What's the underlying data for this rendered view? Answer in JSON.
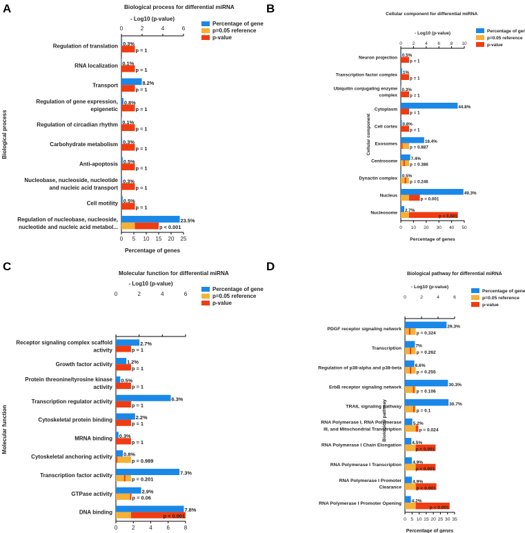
{
  "colors": {
    "gene": "#1a88e8",
    "reference": "#f5b035",
    "pvalue": "#f03c12"
  },
  "chart_data": [
    {
      "panel": "A",
      "type": "bar",
      "orientation": "horizontal",
      "title": "Biological process for differential miRNA",
      "ylabel": "Biological process",
      "xlabel": "Percentage of genes",
      "top_axis_label": "- Log10 (p-value)",
      "xlim_bottom": [
        0,
        25
      ],
      "xticks_bottom": [
        "0",
        "5",
        "10",
        "15",
        "20",
        "25"
      ],
      "xlim_top": [
        0,
        6
      ],
      "xticks_top": [
        "0",
        "2",
        "4",
        "6"
      ],
      "legend": [
        "Percentage of gene",
        "p=0.05 reference",
        "p-value"
      ],
      "categories": [
        [
          "Regulation of translation"
        ],
        [
          "RNA localization"
        ],
        [
          "Transport"
        ],
        [
          "Regulation of gene expression,",
          "epigenetic"
        ],
        [
          "Regulation of circadian rhythm"
        ],
        [
          "Carbohydrate metabolism"
        ],
        [
          "Anti-apoptosis"
        ],
        [
          "Nucleobase, nucleoside, nucleotide",
          "and nucleic acid transport"
        ],
        [
          "Cell motility"
        ],
        [
          "Regulation of nucleobase, nucleoside,",
          "nucleotide and nucleic acid metabol..."
        ]
      ],
      "percent_values": [
        0.3,
        0.1,
        8.2,
        0.8,
        0.1,
        0.3,
        0.5,
        0.3,
        0.5,
        23.5
      ],
      "percent_labels": [
        "0.3%",
        "0.1%",
        "8.2%",
        "0.8%",
        "0.1%",
        "0.3%",
        "0.5%",
        "0.3%",
        "0.5%",
        "23.5%"
      ],
      "neglog10_p": [
        0,
        0,
        0,
        0,
        0,
        0,
        0,
        0,
        0,
        3.6
      ],
      "p_labels": [
        "p = 1",
        "p = 1",
        "p = 1",
        "p = 1",
        "p = 1",
        "p = 1",
        "p = 1",
        "p = 1",
        "p = 1",
        "p < 0.001"
      ]
    },
    {
      "panel": "B",
      "type": "bar",
      "orientation": "horizontal",
      "title": "Cellular component for differential miRNA",
      "ylabel": "Cellular component",
      "xlabel": "Percentage of genes",
      "top_axis_label": "- Log10 (p-value)",
      "xlim_bottom": [
        0,
        50
      ],
      "xticks_bottom": [
        "0",
        "10",
        "20",
        "30",
        "40",
        "50"
      ],
      "xlim_top": [
        0,
        10
      ],
      "xticks_top": [
        "0",
        "2",
        "4",
        "6",
        "8",
        "10"
      ],
      "legend": [
        "Percentage of gene",
        "p=0.05 reference",
        "p-value"
      ],
      "categories": [
        [
          "Neuron projection"
        ],
        [
          "Transcription factor complex"
        ],
        [
          "Ubiquitin conjugating enzyme",
          "complex"
        ],
        [
          "Cytoplasm"
        ],
        [
          "Cell cortex"
        ],
        [
          "Exosomes"
        ],
        [
          "Centrosome"
        ],
        [
          "Dynactin complex"
        ],
        [
          "Nucleus"
        ],
        [
          "Nucleosome"
        ]
      ],
      "percent_values": [
        0.5,
        1,
        0.3,
        44.8,
        0.8,
        18.4,
        7.4,
        0.5,
        49.3,
        2.7
      ],
      "percent_labels": [
        "0.5%",
        "1%",
        "0.3%",
        "44.8%",
        "0.8%",
        "18.4%",
        "7.4%",
        "0.5%",
        "49.3%",
        "2.7%"
      ],
      "neglog10_p": [
        0,
        0,
        0,
        0,
        0,
        0.05,
        0.41,
        0.61,
        3.0,
        9.0
      ],
      "p_labels": [
        "p = 1",
        "p = 1",
        "p = 1",
        "p = 1",
        "p = 1",
        "p = 0.887",
        "p = 0.386",
        "p = 0.246",
        "p = 0.001",
        "p < 0.001"
      ]
    },
    {
      "panel": "C",
      "type": "bar",
      "orientation": "horizontal",
      "title": "Molecular function for differential miRNA",
      "ylabel": "Molecular function",
      "xlabel": "Percentage of genes",
      "top_axis_label": "- Log10 (p-value)",
      "xlim_bottom": [
        0,
        8
      ],
      "xticks_bottom": [
        "0",
        "2",
        "4",
        "6",
        "8"
      ],
      "xlim_top": [
        0,
        6
      ],
      "xticks_top": [
        "0",
        "2",
        "4",
        "6"
      ],
      "legend": [
        "Percentage of gene",
        "p=0.05 reference",
        "p-value"
      ],
      "categories": [
        [
          "Receptor signaling complex scaffold",
          "activity"
        ],
        [
          "Growth factor activity"
        ],
        [
          "Protein threonine/tyrosine kinase",
          "activity"
        ],
        [
          "Transcription regulator activity"
        ],
        [
          "Cytoskeletal protein binding"
        ],
        [
          "MRNA binding"
        ],
        [
          "Cytoskeletal anchoring activity"
        ],
        [
          "Transcription factor activity"
        ],
        [
          "GTPase activity"
        ],
        [
          "DNA binding"
        ]
      ],
      "percent_values": [
        2.7,
        1.2,
        0.5,
        6.3,
        2.2,
        0.3,
        0.8,
        7.3,
        2.9,
        7.8
      ],
      "percent_labels": [
        "2.7%",
        "1.2%",
        "0.5%",
        "6.3%",
        "2.2%",
        "0.3%",
        "0.8%",
        "7.3%",
        "2.9%",
        "7.8%"
      ],
      "neglog10_p": [
        0,
        0,
        0,
        0,
        0,
        0,
        0.005,
        0.7,
        1.22,
        6.0
      ],
      "p_labels": [
        "p = 1",
        "p = 1",
        "p = 1",
        "p = 1",
        "p = 1",
        "p = 1",
        "p = 0.989",
        "p = 0.201",
        "p = 0.06",
        "p < 0.001"
      ]
    },
    {
      "panel": "D",
      "type": "bar",
      "orientation": "horizontal",
      "title": "Biological pathway for differential miRNA",
      "ylabel": "Biological pathway",
      "xlabel": "Percentage of genes",
      "top_axis_label": "- Log10 (p-value)",
      "xlim_bottom": [
        0,
        35
      ],
      "xticks_bottom": [
        "0",
        "5",
        "10",
        "15",
        "20",
        "25",
        "30",
        "35"
      ],
      "xlim_top": [
        0,
        6
      ],
      "xticks_top": [
        "0",
        "2",
        "4",
        "6"
      ],
      "legend": [
        "Percentage of gene",
        "p=0.05 reference",
        "p-value"
      ],
      "categories": [
        [
          "PDGF receptor signaling network"
        ],
        [
          "Transcription"
        ],
        [
          "Regulation of p38-alpha and p38-beta"
        ],
        [
          "ErbB receptor signaling network"
        ],
        [
          "TRAIL signaling pathway"
        ],
        [
          "RNA Polymerase I, RNA Polymerase",
          "III, and Mitochondrial Transcription"
        ],
        [
          "RNA Polymerase I Chain Elongation"
        ],
        [
          "RNA Polymerase I Transcription"
        ],
        [
          "RNA Polymerase I Promoter",
          "Clearance"
        ],
        [
          "RNA Polymerase I Promoter Opening"
        ]
      ],
      "percent_values": [
        29.3,
        7,
        6.6,
        30.3,
        30.7,
        5.2,
        4.5,
        4.9,
        4.9,
        4.2
      ],
      "percent_labels": [
        "29.3%",
        "7%",
        "6.6%",
        "30.3%",
        "30.7%",
        "5.2%",
        "4.5%",
        "4.9%",
        "4.9%",
        "4.2%"
      ],
      "neglog10_p": [
        0.49,
        0.58,
        0.59,
        0.97,
        1.0,
        1.62,
        3.7,
        3.7,
        3.8,
        5.4
      ],
      "p_labels": [
        "p = 0.324",
        "p = 0.262",
        "p = 0.255",
        "p = 0.106",
        "p = 0.1",
        "p = 0.024",
        "p < 0.001",
        "p < 0.001",
        "p < 0.001",
        "p < 0.001"
      ]
    }
  ]
}
